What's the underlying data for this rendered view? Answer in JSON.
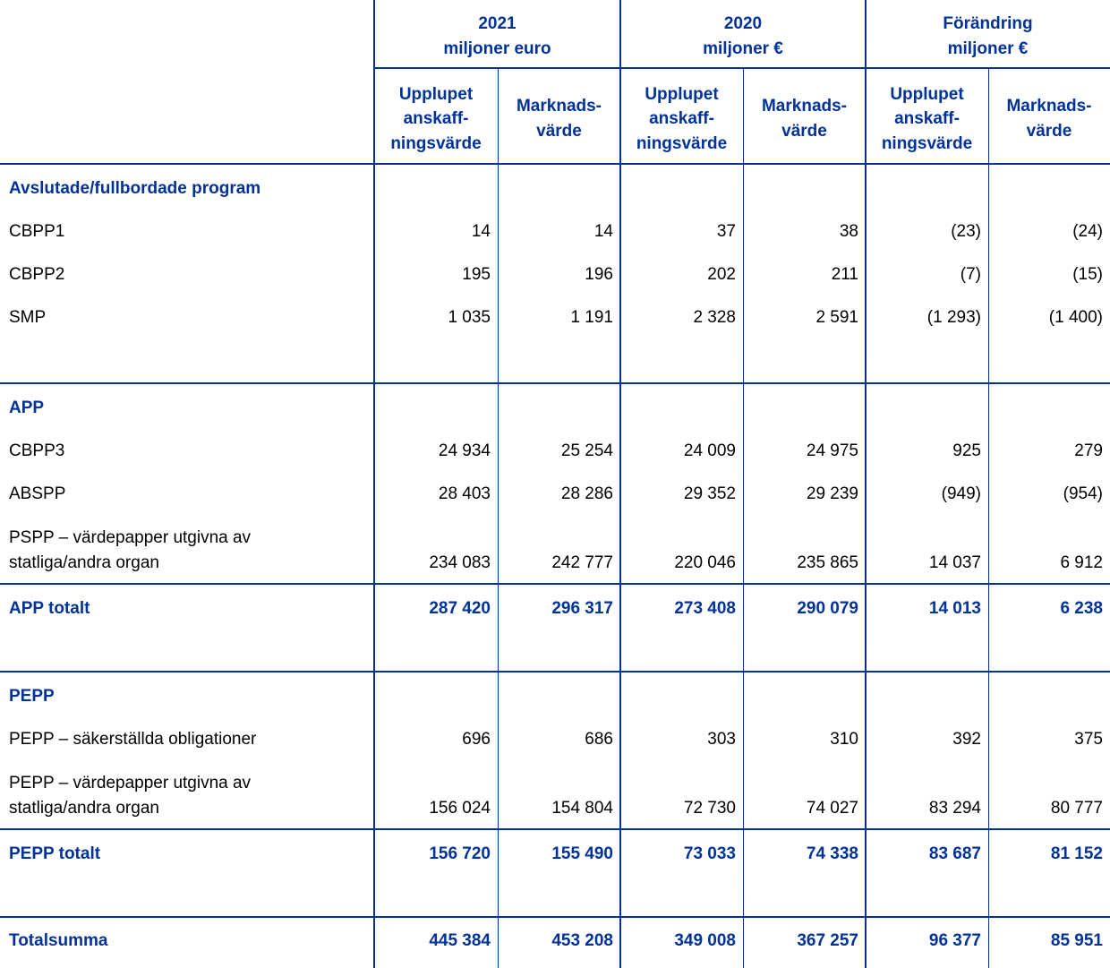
{
  "header": {
    "groups": [
      {
        "title": "2021",
        "unit": "miljoner euro"
      },
      {
        "title": "2020",
        "unit": "miljoner €"
      },
      {
        "title": "Förändring",
        "unit": "miljoner €"
      }
    ],
    "subheaders": [
      [
        [
          "Upplupet",
          "anskaff-",
          "ningsvärde"
        ],
        [
          "Marknads-",
          "värde"
        ]
      ],
      [
        [
          "Upplupet",
          "anskaff-",
          "ningsvärde"
        ],
        [
          "Marknads-",
          "värde"
        ]
      ],
      [
        [
          "Upplupet",
          "anskaff-",
          "ningsvärde"
        ],
        [
          "Marknads-",
          "värde"
        ]
      ]
    ]
  },
  "sections": [
    {
      "title": "Avslutade/fullbordade program",
      "rows": [
        {
          "label": [
            "CBPP1"
          ],
          "values": [
            "14",
            "14",
            "37",
            "38",
            "(23)",
            "(24)"
          ]
        },
        {
          "label": [
            "CBPP2"
          ],
          "values": [
            "195",
            "196",
            "202",
            "211",
            "(7)",
            "(15)"
          ]
        },
        {
          "label": [
            "SMP"
          ],
          "values": [
            "1 035",
            "1 191",
            "2 328",
            "2 591",
            "(1 293)",
            "(1 400)"
          ]
        }
      ]
    },
    {
      "title": "APP",
      "rows": [
        {
          "label": [
            "CBPP3"
          ],
          "values": [
            "24 934",
            "25 254",
            "24 009",
            "24 975",
            "925",
            "279"
          ]
        },
        {
          "label": [
            "ABSPP"
          ],
          "values": [
            "28 403",
            "28 286",
            "29 352",
            "29 239",
            "(949)",
            "(954)"
          ]
        },
        {
          "label": [
            "PSPP – värdepapper utgivna av",
            "statliga/andra organ"
          ],
          "values": [
            "234 083",
            "242 777",
            "220 046",
            "235 865",
            "14 037",
            "6 912"
          ]
        }
      ],
      "total": {
        "label": "APP totalt",
        "values": [
          "287 420",
          "296 317",
          "273 408",
          "290 079",
          "14 013",
          "6 238"
        ]
      }
    },
    {
      "title": "PEPP",
      "rows": [
        {
          "label": [
            "PEPP – säkerställda obligationer"
          ],
          "values": [
            "696",
            "686",
            "303",
            "310",
            "392",
            "375"
          ]
        },
        {
          "label": [
            "PEPP – värdepapper utgivna av",
            "statliga/andra organ"
          ],
          "values": [
            "156 024",
            "154 804",
            "72 730",
            "74 027",
            "83 294",
            "80 777"
          ]
        }
      ],
      "total": {
        "label": "PEPP totalt",
        "values": [
          "156 720",
          "155 490",
          "73 033",
          "74 338",
          "83 687",
          "81 152"
        ]
      }
    }
  ],
  "grand_total": {
    "label": "Totalsumma",
    "values": [
      "445 384",
      "453 208",
      "349 008",
      "367 257",
      "96 377",
      "85 951"
    ]
  }
}
